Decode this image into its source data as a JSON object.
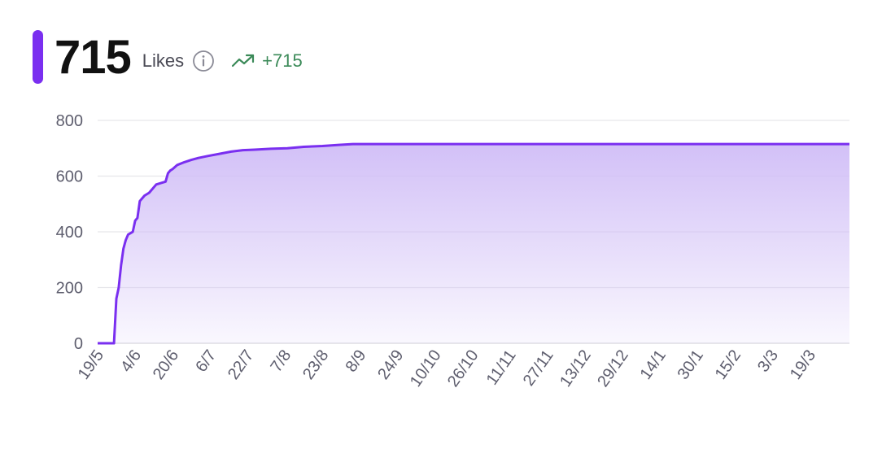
{
  "header": {
    "value": "715",
    "label": "Likes",
    "change": "+715",
    "accent_color": "#7a2ff0",
    "change_color": "#3b8a58",
    "info_icon": "info-circle-icon",
    "trend_icon": "trending-up-icon"
  },
  "chart_data": {
    "type": "area",
    "title": "",
    "xlabel": "",
    "ylabel": "",
    "ylim": [
      0,
      800
    ],
    "yticks": [
      0,
      200,
      400,
      600,
      800
    ],
    "xticks": [
      "19/5",
      "4/6",
      "20/6",
      "6/7",
      "22/7",
      "7/8",
      "23/8",
      "8/9",
      "24/9",
      "10/10",
      "26/10",
      "11/11",
      "27/11",
      "13/12",
      "29/12",
      "14/1",
      "30/1",
      "15/2",
      "3/3",
      "19/3"
    ],
    "x_range": [
      "2023-05-19",
      "2024-04-04"
    ],
    "grid": true,
    "legend": "none",
    "line_color": "#7a2ff0",
    "fill_color": "#d2c0f7",
    "series": [
      {
        "x": [
          "2023-05-19",
          "2023-05-26",
          "2023-05-27",
          "2023-05-28",
          "2023-05-29",
          "2023-05-30",
          "2023-05-31",
          "2023-06-01",
          "2023-06-02",
          "2023-06-03",
          "2023-06-04",
          "2023-06-05",
          "2023-06-06",
          "2023-06-07",
          "2023-06-08",
          "2023-06-10",
          "2023-06-12",
          "2023-06-13",
          "2023-06-15",
          "2023-06-17",
          "2023-06-18",
          "2023-06-19",
          "2023-06-20",
          "2023-06-22",
          "2023-06-25",
          "2023-06-28",
          "2023-07-01",
          "2023-07-05",
          "2023-07-10",
          "2023-07-15",
          "2023-07-20",
          "2023-07-25",
          "2023-08-01",
          "2023-08-08",
          "2023-08-15",
          "2023-08-23",
          "2023-08-30",
          "2023-09-05",
          "2023-09-10",
          "2024-04-04"
        ],
        "y": [
          0,
          0,
          160,
          200,
          280,
          340,
          370,
          390,
          395,
          400,
          440,
          450,
          510,
          520,
          530,
          540,
          560,
          570,
          575,
          580,
          610,
          620,
          625,
          640,
          650,
          658,
          665,
          672,
          680,
          688,
          693,
          695,
          698,
          700,
          705,
          708,
          712,
          715,
          715,
          715
        ]
      }
    ]
  }
}
